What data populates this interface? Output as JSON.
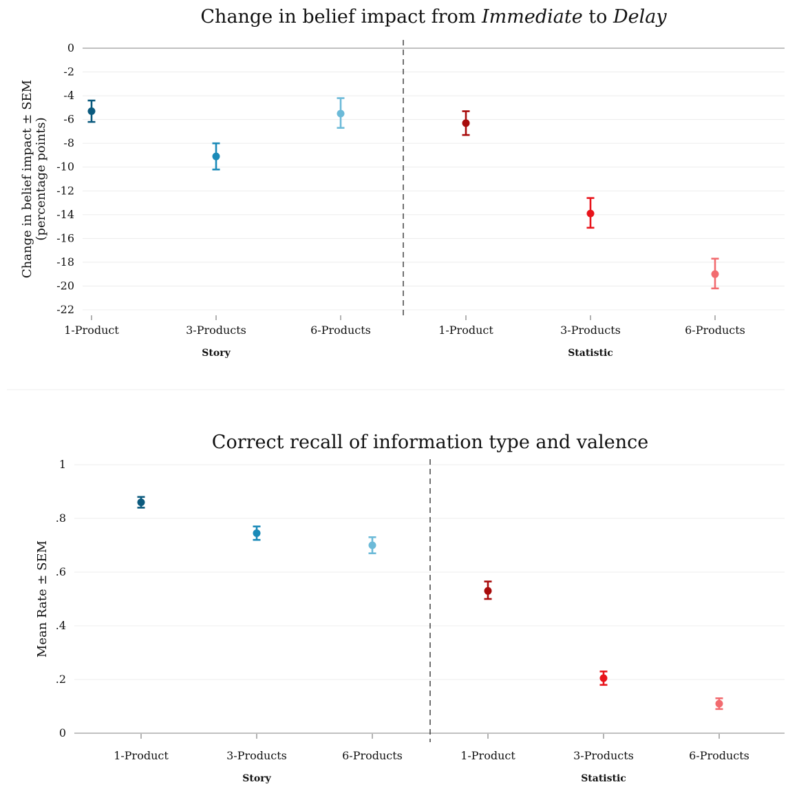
{
  "chart_data": [
    {
      "type": "scatter",
      "title_parts": [
        {
          "text": "Change in belief impact from ",
          "italic": false
        },
        {
          "text": "Immediate",
          "italic": true
        },
        {
          "text": " to ",
          "italic": false
        },
        {
          "text": "Delay",
          "italic": true
        }
      ],
      "ylabel_lines": [
        "Change in belief impact ± SEM",
        "(percentage points)"
      ],
      "ylim": [
        -22,
        0
      ],
      "yticks": [
        {
          "v": 0,
          "label": "0"
        },
        {
          "v": -2,
          "label": "-2"
        },
        {
          "v": -4,
          "label": "-4"
        },
        {
          "v": -6,
          "label": "-6"
        },
        {
          "v": -8,
          "label": "-8"
        },
        {
          "v": -10,
          "label": "-10"
        },
        {
          "v": -12,
          "label": "-12"
        },
        {
          "v": -14,
          "label": "-14"
        },
        {
          "v": -16,
          "label": "-16"
        },
        {
          "v": -18,
          "label": "-18"
        },
        {
          "v": -20,
          "label": "-20"
        },
        {
          "v": -22,
          "label": "-22"
        }
      ],
      "groups": [
        "Story",
        "Statistic"
      ],
      "points": [
        {
          "group": "Story",
          "category": "1-Product",
          "value": -5.3,
          "low": -6.2,
          "high": -4.4,
          "color": "#0b5a7e"
        },
        {
          "group": "Story",
          "category": "3-Products",
          "value": -9.1,
          "low": -10.2,
          "high": -8.0,
          "color": "#1a8ab8"
        },
        {
          "group": "Story",
          "category": "6-Products",
          "value": -5.5,
          "low": -6.7,
          "high": -4.2,
          "color": "#6cbad8"
        },
        {
          "group": "Statistic",
          "category": "1-Product",
          "value": -6.3,
          "low": -7.3,
          "high": -5.3,
          "color": "#a80b0b"
        },
        {
          "group": "Statistic",
          "category": "3-Products",
          "value": -13.9,
          "low": -15.1,
          "high": -12.6,
          "color": "#e8141b"
        },
        {
          "group": "Statistic",
          "category": "6-Products",
          "value": -19.0,
          "low": -20.2,
          "high": -17.7,
          "color": "#f26b6f"
        }
      ]
    },
    {
      "type": "scatter",
      "title_parts": [
        {
          "text": "Correct recall of information type and valence",
          "italic": false
        }
      ],
      "ylabel_lines": [
        "Mean Rate ± SEM"
      ],
      "ylim": [
        0,
        1
      ],
      "yticks": [
        {
          "v": 0,
          "label": "0"
        },
        {
          "v": 0.2,
          "label": ".2"
        },
        {
          "v": 0.4,
          "label": ".4"
        },
        {
          "v": 0.6,
          "label": ".6"
        },
        {
          "v": 0.8,
          "label": ".8"
        },
        {
          "v": 1,
          "label": "1"
        }
      ],
      "groups": [
        "Story",
        "Statistic"
      ],
      "points": [
        {
          "group": "Story",
          "category": "1-Product",
          "value": 0.86,
          "low": 0.84,
          "high": 0.88,
          "color": "#0b5a7e"
        },
        {
          "group": "Story",
          "category": "3-Products",
          "value": 0.745,
          "low": 0.72,
          "high": 0.77,
          "color": "#1a8ab8"
        },
        {
          "group": "Story",
          "category": "6-Products",
          "value": 0.7,
          "low": 0.67,
          "high": 0.73,
          "color": "#6cbad8"
        },
        {
          "group": "Statistic",
          "category": "1-Product",
          "value": 0.53,
          "low": 0.5,
          "high": 0.565,
          "color": "#a80b0b"
        },
        {
          "group": "Statistic",
          "category": "3-Products",
          "value": 0.205,
          "low": 0.18,
          "high": 0.23,
          "color": "#e8141b"
        },
        {
          "group": "Statistic",
          "category": "6-Products",
          "value": 0.11,
          "low": 0.09,
          "high": 0.13,
          "color": "#f26b6f"
        }
      ]
    }
  ]
}
